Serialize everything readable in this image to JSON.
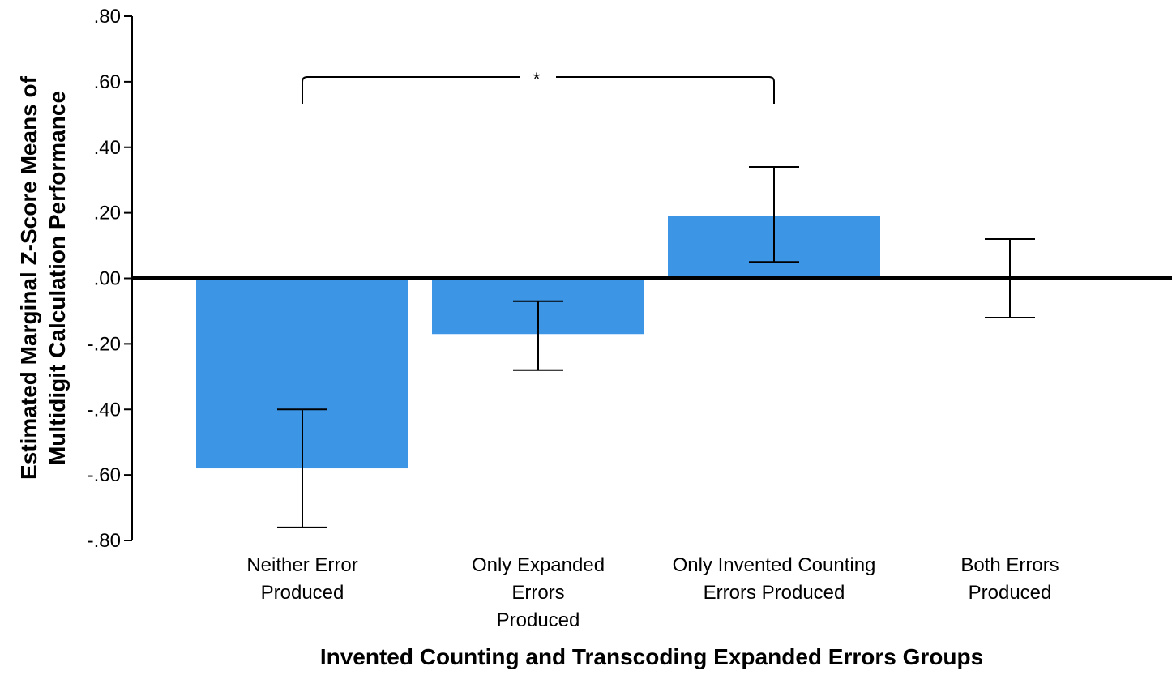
{
  "chart_data": {
    "type": "bar",
    "title": "",
    "xlabel": "Invented Counting and Transcoding Expanded Errors Groups",
    "ylabel_lines": [
      "Estimated Marginal Z-Score Means of",
      "Multidigit Calculation Performance"
    ],
    "categories": [
      [
        "Neither Error",
        "Produced"
      ],
      [
        "Only Expanded",
        "Errors",
        "Produced"
      ],
      [
        "Only Invented Counting",
        "Errors Produced"
      ],
      [
        "Both Errors",
        "Produced"
      ]
    ],
    "values": [
      -0.58,
      -0.17,
      0.19,
      0.0
    ],
    "error_low": [
      -0.76,
      -0.28,
      0.05,
      -0.12
    ],
    "error_high": [
      -0.4,
      -0.07,
      0.34,
      0.12
    ],
    "ylim": [
      -0.8,
      0.8
    ],
    "yticks": [
      ".80",
      ".60",
      ".40",
      ".20",
      ".00",
      "-.20",
      "-.40",
      "-.60",
      "-.80"
    ],
    "ytick_values": [
      0.8,
      0.6,
      0.4,
      0.2,
      0.0,
      -0.2,
      -0.4,
      -0.6,
      -0.8
    ],
    "significance": {
      "between": [
        0,
        2
      ],
      "label": "*"
    },
    "bar_color": "#3d95e6",
    "grid": false
  }
}
